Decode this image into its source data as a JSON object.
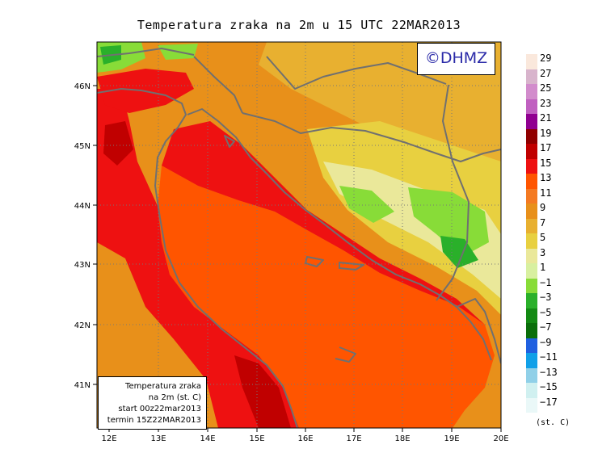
{
  "title": "Temperatura zraka na 2m u 15 UTC 22MAR2013",
  "logo": "©DHMZ",
  "info_box": [
    "Temperatura zraka",
    "na 2m (st. C)",
    "start 00z22mar2013",
    "termin 15Z22MAR2013"
  ],
  "axes": {
    "x_ticks": [
      "12E",
      "13E",
      "14E",
      "15E",
      "16E",
      "17E",
      "18E",
      "19E",
      "20E"
    ],
    "y_ticks": [
      "46N",
      "45N",
      "44N",
      "43N",
      "42N",
      "41N"
    ]
  },
  "legend": {
    "unit": "(st. C)",
    "labels": [
      "29",
      "27",
      "25",
      "23",
      "21",
      "19",
      "17",
      "15",
      "13",
      "11",
      "9",
      "7",
      "5",
      "3",
      "1",
      "−1",
      "−3",
      "−5",
      "−7",
      "−9",
      "−11",
      "−13",
      "−15",
      "−17"
    ],
    "colors": [
      "#fae8dc",
      "#d8b4cc",
      "#d28ccc",
      "#c060c0",
      "#900090",
      "#900000",
      "#c00000",
      "#ee1111",
      "#ff5500",
      "#f47a22",
      "#e8901a",
      "#e8b030",
      "#e8d040",
      "#eae89a",
      "#d8f0a0",
      "#88dc38",
      "#2ab02a",
      "#138a13",
      "#0a6e0a",
      "#2060e0",
      "#10a0e8",
      "#90d0e8",
      "#d0f0f0",
      "#eaf8f8"
    ]
  },
  "colors": {
    "sea": "#ff5500",
    "hot_coast": "#ee1111",
    "dark_hot": "#c00000",
    "warm_land": "#e8901a",
    "land_mid": "#e8b030",
    "land_high": "#e8d040",
    "pale": "#eae89a",
    "green": "#88dc38",
    "green_dark": "#2ab02a",
    "coast": "#707070"
  }
}
